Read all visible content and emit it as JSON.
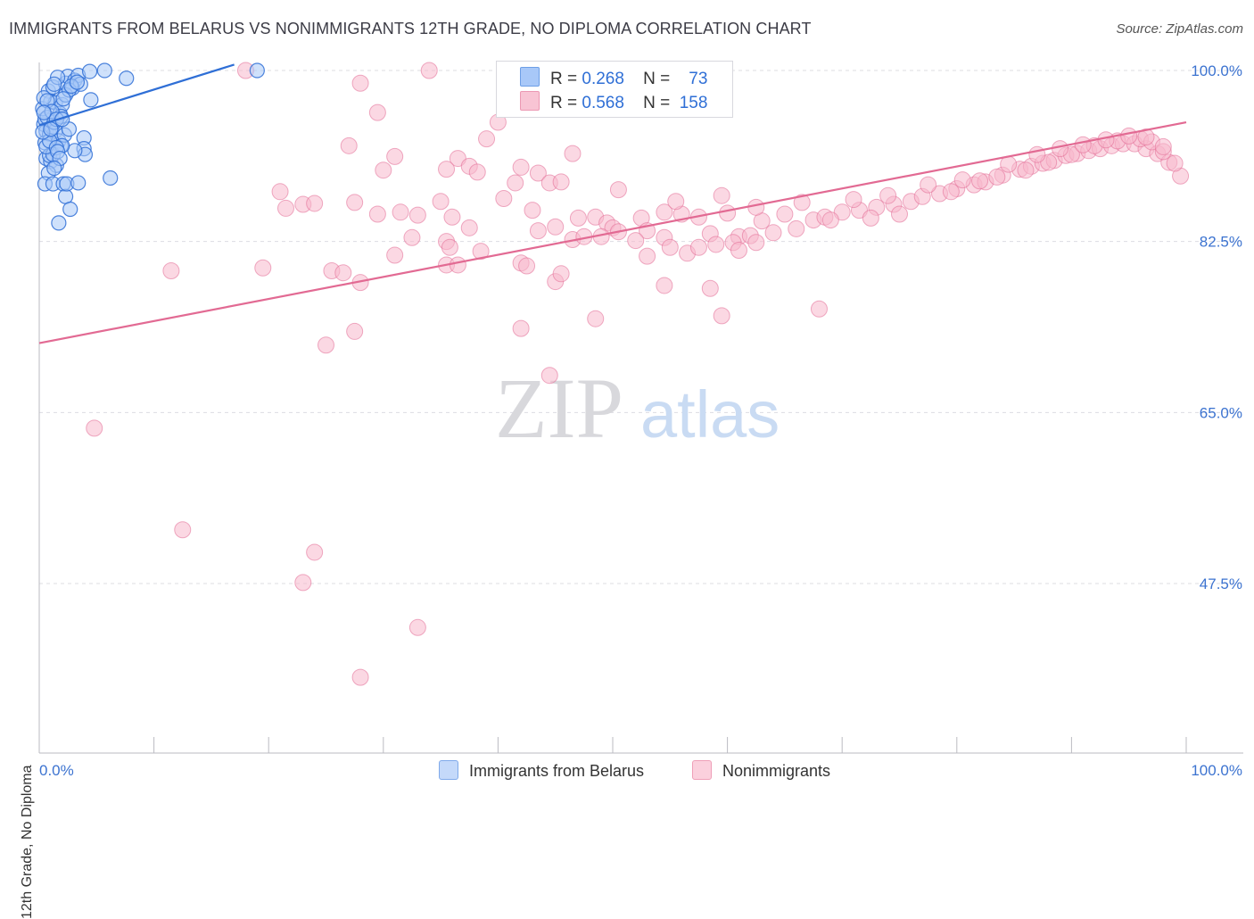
{
  "title": "IMMIGRANTS FROM BELARUS VS NONIMMIGRANTS 12TH GRADE, NO DIPLOMA CORRELATION CHART",
  "source": "Source: ZipAtlas.com",
  "watermark": {
    "zip": "ZIP",
    "atlas": "atlas"
  },
  "legend": {
    "rows": [
      {
        "r_label": "R =",
        "r": "0.268",
        "n_label": "N =",
        "n": "73",
        "color": "#a8c8f8"
      },
      {
        "r_label": "R =",
        "r": "0.568",
        "n_label": "N =",
        "n": "158",
        "color": "#f8b8cc"
      }
    ]
  },
  "bottom_legend": [
    "Immigrants from Belarus",
    "Nonimmigrants"
  ],
  "chart_data": {
    "type": "scatter",
    "title": "IMMIGRANTS FROM BELARUS VS NONIMMIGRANTS 12TH GRADE, NO DIPLOMA CORRELATION CHART",
    "xlabel": "",
    "ylabel": "12th Grade, No Diploma",
    "xlim": [
      0,
      100
    ],
    "ylim": [
      30,
      101.8
    ],
    "x_tick_labels": [
      "0.0%",
      "100.0%"
    ],
    "y_ticks": [
      100.0,
      82.5,
      65.0,
      47.5
    ],
    "y_tick_labels": [
      "100.0%",
      "82.5%",
      "65.0%",
      "47.5%"
    ],
    "grid": true,
    "legend_position": "top-center",
    "series": [
      {
        "name": "Immigrants from Belarus",
        "color": "#2f6fd6",
        "fill": "#a8c8f8",
        "R": 0.268,
        "N": 73,
        "trend": {
          "x0": 0.0,
          "y0": 94.4,
          "x1": 17.0,
          "y1": 100.6
        },
        "points": [
          [
            0.4,
            94.5
          ],
          [
            0.5,
            95.0
          ],
          [
            0.6,
            93.8
          ],
          [
            0.3,
            96.1
          ],
          [
            0.7,
            95.2
          ],
          [
            0.8,
            97.9
          ],
          [
            1.0,
            96.8
          ],
          [
            1.2,
            98.3
          ],
          [
            0.5,
            92.6
          ],
          [
            0.9,
            93.5
          ],
          [
            1.1,
            94.2
          ],
          [
            1.4,
            96.7
          ],
          [
            1.8,
            95.6
          ],
          [
            2.0,
            96.5
          ],
          [
            2.3,
            98.7
          ],
          [
            2.5,
            99.4
          ],
          [
            1.6,
            99.3
          ],
          [
            1.3,
            98.6
          ],
          [
            0.6,
            91.0
          ],
          [
            1.0,
            90.7
          ],
          [
            1.5,
            90.3
          ],
          [
            0.8,
            89.5
          ],
          [
            0.5,
            88.4
          ],
          [
            1.2,
            88.4
          ],
          [
            2.1,
            88.4
          ],
          [
            2.3,
            87.1
          ],
          [
            2.7,
            85.8
          ],
          [
            1.7,
            84.4
          ],
          [
            2.9,
            98.2
          ],
          [
            3.1,
            99.0
          ],
          [
            3.4,
            99.5
          ],
          [
            3.6,
            98.6
          ],
          [
            4.4,
            99.9
          ],
          [
            5.7,
            100.0
          ],
          [
            7.6,
            99.2
          ],
          [
            1.4,
            93.8
          ],
          [
            1.7,
            92.8
          ],
          [
            1.9,
            92.3
          ],
          [
            2.2,
            93.4
          ],
          [
            2.6,
            94.0
          ],
          [
            3.9,
            93.1
          ],
          [
            3.9,
            92.0
          ],
          [
            4.0,
            91.4
          ],
          [
            3.1,
            91.8
          ],
          [
            0.9,
            91.3
          ],
          [
            1.2,
            91.4
          ],
          [
            2.0,
            92.3
          ],
          [
            1.3,
            94.7
          ],
          [
            1.9,
            95.3
          ],
          [
            2.3,
            97.5
          ],
          [
            2.6,
            98.0
          ],
          [
            2.8,
            98.4
          ],
          [
            3.3,
            98.8
          ],
          [
            2.1,
            97.1
          ],
          [
            4.5,
            97.0
          ],
          [
            0.6,
            92.2
          ],
          [
            0.9,
            92.8
          ],
          [
            1.5,
            92.1
          ],
          [
            1.6,
            91.7
          ],
          [
            1.8,
            91.0
          ],
          [
            1.3,
            90.0
          ],
          [
            2.4,
            88.4
          ],
          [
            3.4,
            88.5
          ],
          [
            6.2,
            89.0
          ],
          [
            19.0,
            100.0
          ],
          [
            0.4,
            97.2
          ],
          [
            0.7,
            96.9
          ],
          [
            1.1,
            95.8
          ],
          [
            1.5,
            95.0
          ],
          [
            0.3,
            93.7
          ],
          [
            0.4,
            95.7
          ],
          [
            1.0,
            94.0
          ],
          [
            2.0,
            95.0
          ]
        ]
      },
      {
        "name": "Nonimmigrants",
        "color": "#e26a93",
        "fill": "#f8b8cc",
        "R": 0.568,
        "N": 158,
        "trend": {
          "x0": 0.0,
          "y0": 72.1,
          "x1": 100.0,
          "y1": 94.7
        },
        "points": [
          [
            34.0,
            100.0
          ],
          [
            28.0,
            98.7
          ],
          [
            29.5,
            95.7
          ],
          [
            40.0,
            94.7
          ],
          [
            39.0,
            93.0
          ],
          [
            27.0,
            92.3
          ],
          [
            31.0,
            91.2
          ],
          [
            36.5,
            91.0
          ],
          [
            46.5,
            91.5
          ],
          [
            37.5,
            90.2
          ],
          [
            38.2,
            89.6
          ],
          [
            35.5,
            89.9
          ],
          [
            30.0,
            89.8
          ],
          [
            43.5,
            89.5
          ],
          [
            42.0,
            90.1
          ],
          [
            44.5,
            88.5
          ],
          [
            41.5,
            88.5
          ],
          [
            45.5,
            88.6
          ],
          [
            50.5,
            87.8
          ],
          [
            40.5,
            86.9
          ],
          [
            35.0,
            86.6
          ],
          [
            23.0,
            86.3
          ],
          [
            21.5,
            85.9
          ],
          [
            24.0,
            86.4
          ],
          [
            31.5,
            85.5
          ],
          [
            33.0,
            85.2
          ],
          [
            48.5,
            85.0
          ],
          [
            47.0,
            84.9
          ],
          [
            52.5,
            84.9
          ],
          [
            54.5,
            85.5
          ],
          [
            56.0,
            85.3
          ],
          [
            57.5,
            85.0
          ],
          [
            29.5,
            85.3
          ],
          [
            27.5,
            86.5
          ],
          [
            21.0,
            87.6
          ],
          [
            43.0,
            85.7
          ],
          [
            36.0,
            85.0
          ],
          [
            37.5,
            83.9
          ],
          [
            45.0,
            84.0
          ],
          [
            49.5,
            84.4
          ],
          [
            50.0,
            83.9
          ],
          [
            53.0,
            83.6
          ],
          [
            58.5,
            83.3
          ],
          [
            61.0,
            83.0
          ],
          [
            62.0,
            83.1
          ],
          [
            64.0,
            83.4
          ],
          [
            66.0,
            83.8
          ],
          [
            67.5,
            84.7
          ],
          [
            68.5,
            85.0
          ],
          [
            70.0,
            85.5
          ],
          [
            71.5,
            85.7
          ],
          [
            73.0,
            86.0
          ],
          [
            74.5,
            86.3
          ],
          [
            76.0,
            86.6
          ],
          [
            77.0,
            87.1
          ],
          [
            78.5,
            87.4
          ],
          [
            80.0,
            87.9
          ],
          [
            81.5,
            88.3
          ],
          [
            82.5,
            88.6
          ],
          [
            84.0,
            89.3
          ],
          [
            85.5,
            89.9
          ],
          [
            86.5,
            90.2
          ],
          [
            87.5,
            90.5
          ],
          [
            88.5,
            90.8
          ],
          [
            89.5,
            91.3
          ],
          [
            90.5,
            91.5
          ],
          [
            91.5,
            91.8
          ],
          [
            92.5,
            92.0
          ],
          [
            93.5,
            92.3
          ],
          [
            94.5,
            92.5
          ],
          [
            95.5,
            92.5
          ],
          [
            96.5,
            92.0
          ],
          [
            97.5,
            91.5
          ],
          [
            98.5,
            90.6
          ],
          [
            99.5,
            89.2
          ],
          [
            60.0,
            85.4
          ],
          [
            63.0,
            84.6
          ],
          [
            65.0,
            85.3
          ],
          [
            69.0,
            84.7
          ],
          [
            72.5,
            84.9
          ],
          [
            75.0,
            85.3
          ],
          [
            79.5,
            87.6
          ],
          [
            82.0,
            88.7
          ],
          [
            83.5,
            89.1
          ],
          [
            86.0,
            89.8
          ],
          [
            88.0,
            90.6
          ],
          [
            90.0,
            91.4
          ],
          [
            92.0,
            92.3
          ],
          [
            94.0,
            92.8
          ],
          [
            96.0,
            93.0
          ],
          [
            97.0,
            92.7
          ],
          [
            98.0,
            91.7
          ],
          [
            99.0,
            90.5
          ],
          [
            55.5,
            86.6
          ],
          [
            59.5,
            87.2
          ],
          [
            62.5,
            86.0
          ],
          [
            66.5,
            86.5
          ],
          [
            71.0,
            86.8
          ],
          [
            74.0,
            87.2
          ],
          [
            77.5,
            88.3
          ],
          [
            80.5,
            88.8
          ],
          [
            84.5,
            90.4
          ],
          [
            87.0,
            91.4
          ],
          [
            89.0,
            92.0
          ],
          [
            91.0,
            92.4
          ],
          [
            93.0,
            92.9
          ],
          [
            95.0,
            93.3
          ],
          [
            96.5,
            93.2
          ],
          [
            98.0,
            92.2
          ],
          [
            11.5,
            79.5
          ],
          [
            19.5,
            79.8
          ],
          [
            25.5,
            79.5
          ],
          [
            26.5,
            79.3
          ],
          [
            28.0,
            78.3
          ],
          [
            31.0,
            81.1
          ],
          [
            35.5,
            80.1
          ],
          [
            42.0,
            80.3
          ],
          [
            42.5,
            80.0
          ],
          [
            45.0,
            78.4
          ],
          [
            45.5,
            79.2
          ],
          [
            46.5,
            82.7
          ],
          [
            49.0,
            83.0
          ],
          [
            50.5,
            83.5
          ],
          [
            52.0,
            82.6
          ],
          [
            54.5,
            82.9
          ],
          [
            55.0,
            81.9
          ],
          [
            56.5,
            81.3
          ],
          [
            57.5,
            81.9
          ],
          [
            59.0,
            82.2
          ],
          [
            60.5,
            82.4
          ],
          [
            61.0,
            81.6
          ],
          [
            62.5,
            82.4
          ],
          [
            35.5,
            82.5
          ],
          [
            35.8,
            81.9
          ],
          [
            38.5,
            81.5
          ],
          [
            36.5,
            80.1
          ],
          [
            32.5,
            82.9
          ],
          [
            43.5,
            83.6
          ],
          [
            47.5,
            83.0
          ],
          [
            53.0,
            81.0
          ],
          [
            54.5,
            78.0
          ],
          [
            58.5,
            77.7
          ],
          [
            68.0,
            75.6
          ],
          [
            59.5,
            74.9
          ],
          [
            48.5,
            74.6
          ],
          [
            42.0,
            73.6
          ],
          [
            27.5,
            73.3
          ],
          [
            25.0,
            71.9
          ],
          [
            44.5,
            68.8
          ],
          [
            4.8,
            63.4
          ],
          [
            12.5,
            53.0
          ],
          [
            24.0,
            50.7
          ],
          [
            23.0,
            47.6
          ],
          [
            33.0,
            43.0
          ],
          [
            28.0,
            37.9
          ],
          [
            18.0,
            100.0
          ]
        ]
      }
    ]
  }
}
